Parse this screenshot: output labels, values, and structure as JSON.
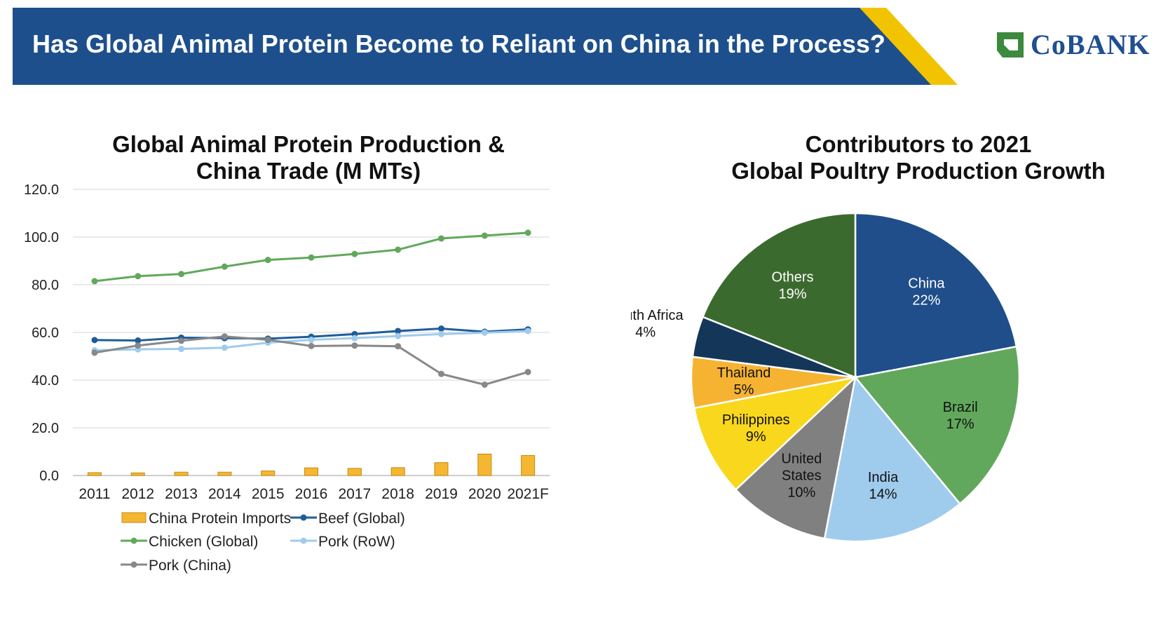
{
  "header": {
    "title": "Has Global Animal Protein Become to Reliant on China in the Process?",
    "brand": "CoBANK",
    "colors": {
      "banner": "#1d4f8c",
      "stripe": "#f2c300",
      "brand": "#1f4e93",
      "brand_mark": "#3c8a3e"
    }
  },
  "chart_data": [
    {
      "type": "line",
      "title_line1": "Global Animal Protein Production &",
      "title_line2": "China Trade (M MTs)",
      "categories": [
        "2011",
        "2012",
        "2013",
        "2014",
        "2015",
        "2016",
        "2017",
        "2018",
        "2019",
        "2020",
        "2021F"
      ],
      "ylim": [
        0,
        120
      ],
      "yticks": [
        "0.0",
        "20.0",
        "40.0",
        "60.0",
        "80.0",
        "100.0",
        "120.0"
      ],
      "grid": true,
      "legend_position": "bottom",
      "series": [
        {
          "name": "China Protein Imports",
          "kind": "bar",
          "color": "#f5b731",
          "values": [
            1.2,
            1.1,
            1.4,
            1.4,
            1.9,
            3.2,
            3.0,
            3.3,
            5.4,
            9.0,
            8.4
          ]
        },
        {
          "name": "Beef (Global)",
          "kind": "line",
          "color": "#1f5c99",
          "values": [
            56.8,
            56.6,
            57.8,
            57.6,
            57.4,
            58.2,
            59.3,
            60.6,
            61.6,
            60.3,
            61.3
          ]
        },
        {
          "name": "Chicken (Global)",
          "kind": "line",
          "color": "#62a85c",
          "values": [
            81.5,
            83.6,
            84.5,
            87.6,
            90.4,
            91.4,
            92.9,
            94.7,
            99.4,
            100.6,
            101.8
          ]
        },
        {
          "name": "Pork (RoW)",
          "kind": "line",
          "color": "#9fcbed",
          "values": [
            52.5,
            52.9,
            53.1,
            53.6,
            55.7,
            56.9,
            57.6,
            58.5,
            59.3,
            59.9,
            60.6
          ]
        },
        {
          "name": "Pork (China)",
          "kind": "line",
          "color": "#888888",
          "values": [
            51.5,
            54.5,
            56.5,
            58.3,
            56.9,
            54.3,
            54.5,
            54.2,
            42.6,
            38.1,
            43.4
          ]
        }
      ]
    },
    {
      "type": "pie",
      "title_line1": "Contributors to 2021",
      "title_line2": "Global Poultry Production Growth",
      "slices": [
        {
          "name": "China",
          "pct": "22%",
          "value": 22,
          "color": "#1f4e8a",
          "label_color": "#ffffff"
        },
        {
          "name": "Brazil",
          "pct": "17%",
          "value": 17,
          "color": "#62a85c",
          "label_color": "#111111"
        },
        {
          "name": "India",
          "pct": "14%",
          "value": 14,
          "color": "#9fcbed",
          "label_color": "#111111"
        },
        {
          "name": "United States",
          "pct": "10%",
          "value": 10,
          "color": "#808080",
          "label_color": "#111111"
        },
        {
          "name": "Philippines",
          "pct": "9%",
          "value": 9,
          "color": "#f9d71c",
          "label_color": "#111111"
        },
        {
          "name": "Thailand",
          "pct": "5%",
          "value": 5,
          "color": "#f6b332",
          "label_color": "#111111"
        },
        {
          "name": "South Africa",
          "pct": "4%",
          "value": 4,
          "color": "#143659",
          "label_color": "#111111"
        },
        {
          "name": "Others",
          "pct": "19%",
          "value": 19,
          "color": "#3b6a2e",
          "label_color": "#ffffff"
        }
      ]
    }
  ]
}
